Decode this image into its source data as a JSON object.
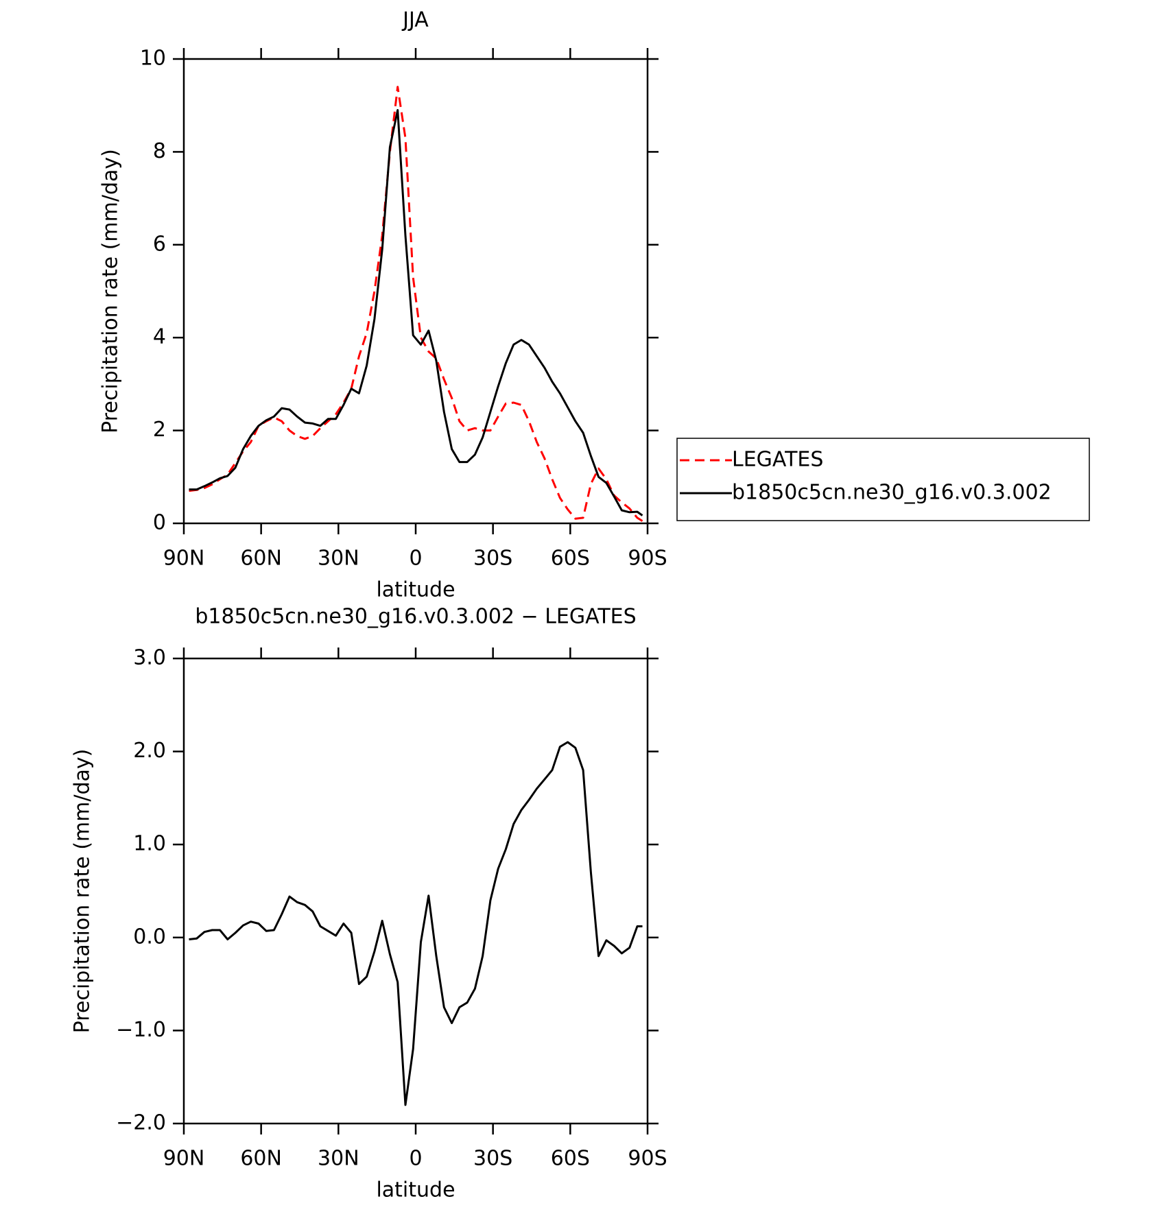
{
  "chart_data": [
    {
      "type": "line",
      "title": "JJA",
      "xlabel": "latitude",
      "ylabel": "Precipitation rate (mm/day)",
      "x": [
        88,
        85,
        82,
        79,
        76,
        73,
        70,
        67,
        64,
        61,
        58,
        55,
        52,
        49,
        46,
        43,
        40,
        37,
        34,
        31,
        28,
        25,
        22,
        19,
        16,
        13,
        10,
        7,
        4,
        1,
        -2,
        -5,
        -8,
        -11,
        -14,
        -17,
        -20,
        -23,
        -26,
        -29,
        -32,
        -35,
        -38,
        -41,
        -44,
        -47,
        -50,
        -53,
        -56,
        -59,
        -62,
        -65,
        -68,
        -71,
        -74,
        -77,
        -80,
        -83,
        -86,
        -88
      ],
      "xlim": [
        90,
        -90
      ],
      "xticks": [
        {
          "value": 90,
          "label": "90N"
        },
        {
          "value": 60,
          "label": "60N"
        },
        {
          "value": 30,
          "label": "30N"
        },
        0,
        {
          "value": -30,
          "label": "30S"
        },
        {
          "value": -60,
          "label": "60S"
        },
        {
          "value": -90,
          "label": "90S"
        }
      ],
      "ylim": [
        0,
        10
      ],
      "yticks": [
        0,
        2,
        4,
        6,
        8,
        10
      ],
      "legend": "outside-right",
      "series": [
        {
          "name": "LEGATES",
          "color": "#ff0000",
          "line_style": "dashed",
          "values": [
            0.7,
            0.72,
            0.76,
            0.84,
            0.95,
            1.05,
            1.3,
            1.55,
            1.75,
            2.1,
            2.2,
            2.28,
            2.2,
            2.0,
            1.88,
            1.82,
            1.88,
            2.05,
            2.2,
            2.35,
            2.6,
            2.9,
            3.6,
            4.1,
            5.0,
            6.2,
            8.0,
            9.4,
            8.3,
            5.3,
            4.0,
            3.7,
            3.55,
            3.1,
            2.7,
            2.2,
            2.0,
            2.05,
            2.0,
            2.0,
            2.3,
            2.58,
            2.6,
            2.55,
            2.2,
            1.75,
            1.4,
            0.95,
            0.55,
            0.3,
            0.1,
            0.12,
            0.85,
            1.18,
            0.95,
            0.6,
            0.45,
            0.32,
            0.12,
            0.05
          ]
        },
        {
          "name": "b1850c5cn.ne30_g16.v0.3.002",
          "color": "#000000",
          "line_style": "solid",
          "values": [
            0.73,
            0.73,
            0.8,
            0.88,
            0.97,
            1.02,
            1.2,
            1.6,
            1.88,
            2.1,
            2.22,
            2.3,
            2.48,
            2.45,
            2.3,
            2.17,
            2.15,
            2.1,
            2.25,
            2.25,
            2.55,
            2.9,
            2.8,
            3.4,
            4.4,
            5.9,
            8.1,
            8.9,
            6.2,
            4.05,
            3.85,
            4.15,
            3.5,
            2.4,
            1.6,
            1.32,
            1.32,
            1.48,
            1.85,
            2.4,
            2.95,
            3.45,
            3.85,
            3.95,
            3.85,
            3.6,
            3.35,
            3.05,
            2.8,
            2.5,
            2.2,
            1.95,
            1.45,
            1.0,
            0.87,
            0.58,
            0.28,
            0.24,
            0.25,
            0.17
          ]
        }
      ]
    },
    {
      "type": "line",
      "title": "b1850c5cn.ne30_g16.v0.3.002 − LEGATES",
      "xlabel": "latitude",
      "ylabel": "Precipitation rate (mm/day)",
      "x": [
        88,
        85,
        82,
        79,
        76,
        73,
        70,
        67,
        64,
        61,
        58,
        55,
        52,
        49,
        46,
        43,
        40,
        37,
        34,
        31,
        28,
        25,
        22,
        19,
        16,
        13,
        10,
        7,
        4,
        1,
        -2,
        -5,
        -8,
        -11,
        -14,
        -17,
        -20,
        -23,
        -26,
        -29,
        -32,
        -35,
        -38,
        -41,
        -44,
        -47,
        -50,
        -53,
        -56,
        -59,
        -62,
        -65,
        -68,
        -71,
        -74,
        -77,
        -80,
        -83,
        -86,
        -88
      ],
      "xlim": [
        90,
        -90
      ],
      "xticks": [
        {
          "value": 90,
          "label": "90N"
        },
        {
          "value": 60,
          "label": "60N"
        },
        {
          "value": 30,
          "label": "30N"
        },
        0,
        {
          "value": -30,
          "label": "30S"
        },
        {
          "value": -60,
          "label": "60S"
        },
        {
          "value": -90,
          "label": "90S"
        }
      ],
      "ylim": [
        -2,
        3
      ],
      "yticks": [
        {
          "value": -2,
          "label": "−2.0"
        },
        {
          "value": -1,
          "label": "−1.0"
        },
        {
          "value": 0,
          "label": "0.0"
        },
        {
          "value": 1,
          "label": "1.0"
        },
        {
          "value": 2,
          "label": "2.0"
        },
        {
          "value": 3,
          "label": "3.0"
        }
      ],
      "color": "#000000",
      "line_style": "solid",
      "values": [
        -0.02,
        -0.01,
        0.06,
        0.08,
        0.08,
        -0.02,
        0.05,
        0.13,
        0.17,
        0.15,
        0.07,
        0.08,
        0.25,
        0.44,
        0.38,
        0.35,
        0.28,
        0.12,
        0.07,
        0.02,
        0.15,
        0.05,
        -0.5,
        -0.42,
        -0.15,
        0.18,
        -0.18,
        -0.48,
        -1.8,
        -1.2,
        -0.05,
        0.45,
        -0.2,
        -0.75,
        -0.92,
        -0.75,
        -0.7,
        -0.55,
        -0.2,
        0.4,
        0.74,
        0.95,
        1.22,
        1.37,
        1.48,
        1.6,
        1.7,
        1.8,
        2.05,
        2.1,
        2.04,
        1.8,
        0.7,
        -0.2,
        -0.03,
        -0.09,
        -0.17,
        -0.11,
        0.12,
        0.12
      ]
    }
  ]
}
